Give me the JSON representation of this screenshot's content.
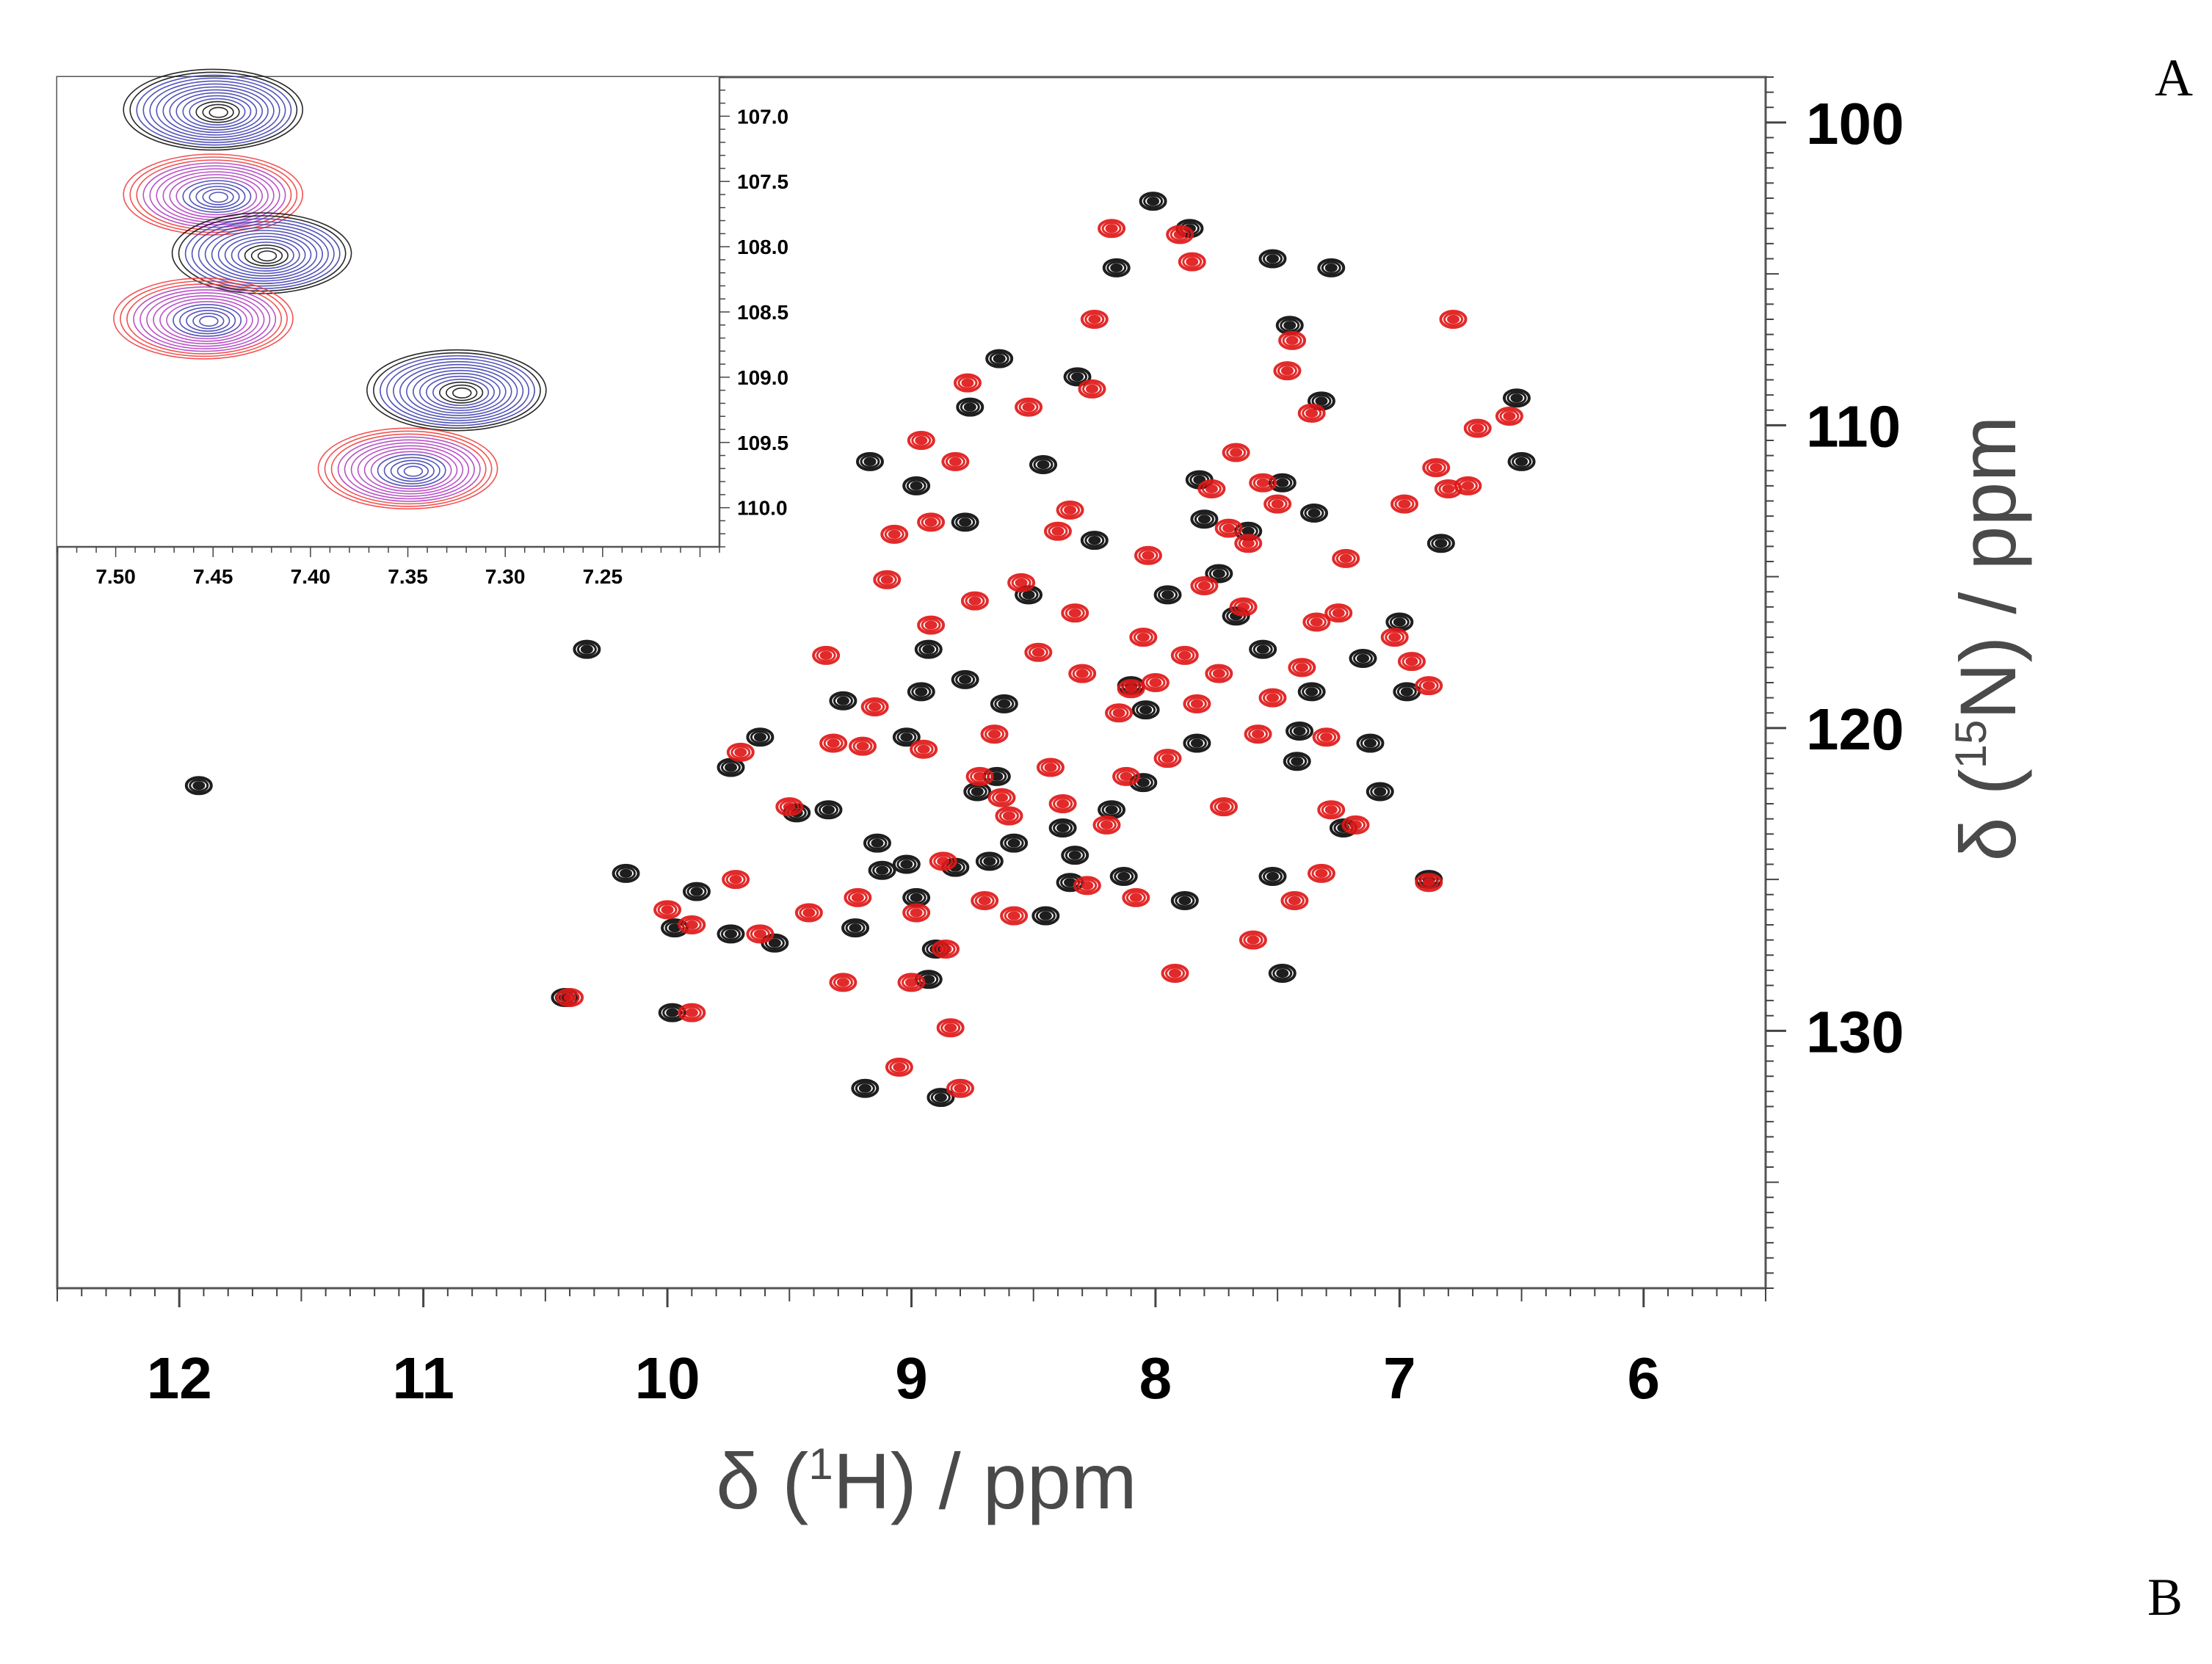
{
  "panel_labels": [
    "A",
    "B"
  ],
  "chart_data": [
    {
      "type": "scatter",
      "subtype": "2D NMR 1H-15N HSQC overlay",
      "title": "",
      "xlabel": {
        "symbol": "δ (",
        "isotope_mass": "1",
        "isotope": "H",
        "suffix": ") / ppm"
      },
      "ylabel": {
        "symbol": "δ (",
        "isotope_mass": "15",
        "isotope": "N",
        "suffix": ") / ppm"
      },
      "x_reversed": true,
      "y_reversed": true,
      "xlim": [
        12.5,
        5.5
      ],
      "ylim": [
        98.5,
        138.5
      ],
      "x_ticks": [
        "12",
        "11",
        "10",
        "9",
        "8",
        "7",
        "6"
      ],
      "x_tick_values": [
        12,
        11,
        10,
        9,
        8,
        7,
        6
      ],
      "y_ticks": [
        "100",
        "110",
        "120",
        "130"
      ],
      "y_tick_values": [
        100,
        110,
        120,
        130
      ],
      "grid": false,
      "colors": {
        "series_a": "#1e1e1e",
        "series_b": "#e01818"
      },
      "series": [
        {
          "color_key": "series_a",
          "points": [
            [
              11.92,
              121.9
            ],
            [
              10.33,
              117.4
            ],
            [
              10.42,
              128.9
            ],
            [
              10.17,
              124.8
            ],
            [
              9.98,
              129.4
            ],
            [
              9.97,
              126.6
            ],
            [
              9.88,
              125.4
            ],
            [
              9.74,
              121.3
            ],
            [
              9.74,
              126.8
            ],
            [
              9.62,
              120.3
            ],
            [
              9.56,
              127.1
            ],
            [
              9.47,
              122.8
            ],
            [
              9.28,
              119.1
            ],
            [
              9.23,
              126.6
            ],
            [
              9.17,
              111.2
            ],
            [
              9.14,
              123.8
            ],
            [
              9.12,
              124.7
            ],
            [
              9.19,
              131.9
            ],
            [
              9.02,
              120.3
            ],
            [
              9.02,
              124.5
            ],
            [
              8.98,
              125.6
            ],
            [
              8.96,
              118.8
            ],
            [
              8.93,
              128.3
            ],
            [
              8.9,
              127.3
            ],
            [
              8.88,
              132.2
            ],
            [
              8.93,
              117.4
            ],
            [
              8.98,
              112.0
            ],
            [
              8.82,
              124.6
            ],
            [
              8.78,
              113.2
            ],
            [
              8.76,
              109.4
            ],
            [
              8.73,
              122.1
            ],
            [
              8.68,
              124.4
            ],
            [
              8.62,
              119.2
            ],
            [
              8.64,
              107.8
            ],
            [
              8.58,
              123.8
            ],
            [
              8.52,
              115.6
            ],
            [
              8.46,
              111.3
            ],
            [
              8.45,
              126.2
            ],
            [
              8.38,
              123.3
            ],
            [
              8.33,
              124.2
            ],
            [
              8.35,
              125.1
            ],
            [
              8.32,
              108.4
            ],
            [
              8.25,
              113.8
            ],
            [
              8.18,
              122.7
            ],
            [
              8.16,
              104.8
            ],
            [
              8.13,
              124.9
            ],
            [
              8.1,
              118.6
            ],
            [
              8.04,
              119.4
            ],
            [
              8.01,
              102.6
            ],
            [
              7.95,
              115.6
            ],
            [
              7.88,
              125.7
            ],
            [
              7.86,
              103.5
            ],
            [
              7.83,
              120.5
            ],
            [
              7.82,
              111.8
            ],
            [
              7.74,
              114.9
            ],
            [
              7.67,
              116.3
            ],
            [
              7.62,
              113.5
            ],
            [
              7.56,
              117.4
            ],
            [
              7.52,
              124.9
            ],
            [
              7.52,
              104.5
            ],
            [
              7.48,
              128.1
            ],
            [
              7.48,
              111.9
            ],
            [
              7.45,
              106.7
            ],
            [
              7.42,
              121.1
            ],
            [
              7.41,
              120.1
            ],
            [
              7.36,
              118.8
            ],
            [
              7.35,
              112.9
            ],
            [
              7.32,
              109.2
            ],
            [
              7.28,
              104.8
            ],
            [
              7.23,
              123.3
            ],
            [
              7.15,
              117.7
            ],
            [
              7.12,
              120.5
            ],
            [
              7.08,
              122.1
            ],
            [
              7.0,
              116.5
            ],
            [
              6.97,
              118.8
            ],
            [
              6.88,
              125.0
            ],
            [
              6.83,
              113.9
            ],
            [
              6.52,
              109.1
            ],
            [
              6.5,
              111.2
            ],
            [
              7.8,
              113.1
            ],
            [
              8.65,
              121.6
            ],
            [
              8.78,
              118.4
            ],
            [
              9.34,
              122.7
            ],
            [
              8.05,
              121.8
            ]
          ]
        },
        {
          "color_key": "series_b",
          "points": [
            [
              10.4,
              128.9
            ],
            [
              10.0,
              126.0
            ],
            [
              9.9,
              126.5
            ],
            [
              9.9,
              129.4
            ],
            [
              9.72,
              125.0
            ],
            [
              9.7,
              120.8
            ],
            [
              9.62,
              126.8
            ],
            [
              9.5,
              122.6
            ],
            [
              9.42,
              126.1
            ],
            [
              9.35,
              117.6
            ],
            [
              9.32,
              120.5
            ],
            [
              9.28,
              128.4
            ],
            [
              9.22,
              125.6
            ],
            [
              9.15,
              119.3
            ],
            [
              9.1,
              115.1
            ],
            [
              9.07,
              113.6
            ],
            [
              9.05,
              131.2
            ],
            [
              9.0,
              128.4
            ],
            [
              8.98,
              126.1
            ],
            [
              8.96,
              110.5
            ],
            [
              8.95,
              120.7
            ],
            [
              8.92,
              113.2
            ],
            [
              8.92,
              116.6
            ],
            [
              8.87,
              124.4
            ],
            [
              8.86,
              127.3
            ],
            [
              8.84,
              129.9
            ],
            [
              8.82,
              111.2
            ],
            [
              8.8,
              131.9
            ],
            [
              8.77,
              108.6
            ],
            [
              8.74,
              115.8
            ],
            [
              8.72,
              121.6
            ],
            [
              8.7,
              125.7
            ],
            [
              8.66,
              120.2
            ],
            [
              8.63,
              122.3
            ],
            [
              8.58,
              126.2
            ],
            [
              8.55,
              115.2
            ],
            [
              8.52,
              109.4
            ],
            [
              8.48,
              117.5
            ],
            [
              8.43,
              121.3
            ],
            [
              8.4,
              113.5
            ],
            [
              8.38,
              122.5
            ],
            [
              8.33,
              116.2
            ],
            [
              8.3,
              118.2
            ],
            [
              8.28,
              125.2
            ],
            [
              8.26,
              108.8
            ],
            [
              8.25,
              106.5
            ],
            [
              8.2,
              123.2
            ],
            [
              8.18,
              103.5
            ],
            [
              8.15,
              119.5
            ],
            [
              8.12,
              121.6
            ],
            [
              8.08,
              125.6
            ],
            [
              8.05,
              117.0
            ],
            [
              8.03,
              114.3
            ],
            [
              8.0,
              118.5
            ],
            [
              7.95,
              121.0
            ],
            [
              7.92,
              128.1
            ],
            [
              7.9,
              103.7
            ],
            [
              7.88,
              117.6
            ],
            [
              7.85,
              104.6
            ],
            [
              7.83,
              119.2
            ],
            [
              7.8,
              115.3
            ],
            [
              7.77,
              112.1
            ],
            [
              7.74,
              118.2
            ],
            [
              7.72,
              122.6
            ],
            [
              7.7,
              113.4
            ],
            [
              7.67,
              110.9
            ],
            [
              7.64,
              116.0
            ],
            [
              7.6,
              127.0
            ],
            [
              7.58,
              120.2
            ],
            [
              7.56,
              111.9
            ],
            [
              7.52,
              119.0
            ],
            [
              7.5,
              112.6
            ],
            [
              7.46,
              108.2
            ],
            [
              7.44,
              107.2
            ],
            [
              7.43,
              125.7
            ],
            [
              7.4,
              118.0
            ],
            [
              7.36,
              109.6
            ],
            [
              7.34,
              116.5
            ],
            [
              7.32,
              124.8
            ],
            [
              7.3,
              120.3
            ],
            [
              7.28,
              122.7
            ],
            [
              7.25,
              116.2
            ],
            [
              7.22,
              114.4
            ],
            [
              7.18,
              123.2
            ],
            [
              7.02,
              117.0
            ],
            [
              6.98,
              112.6
            ],
            [
              6.95,
              117.8
            ],
            [
              6.88,
              118.6
            ],
            [
              6.88,
              125.1
            ],
            [
              6.85,
              111.4
            ],
            [
              6.8,
              112.1
            ],
            [
              6.78,
              106.5
            ],
            [
              6.72,
              112.0
            ],
            [
              6.68,
              110.1
            ],
            [
              6.55,
              109.7
            ],
            [
              8.35,
              112.8
            ],
            [
              8.1,
              118.7
            ],
            [
              7.62,
              113.9
            ],
            [
              8.6,
              122.9
            ],
            [
              9.2,
              120.6
            ]
          ]
        }
      ]
    },
    {
      "type": "scatter",
      "subtype": "inset contour overlay",
      "title": "",
      "x_reversed": true,
      "y_reversed": true,
      "xlim": [
        7.53,
        7.19
      ],
      "ylim": [
        106.7,
        110.3
      ],
      "x_ticks": [
        "7.50",
        "7.45",
        "7.40",
        "7.35",
        "7.30",
        "7.25"
      ],
      "x_tick_values": [
        7.5,
        7.45,
        7.4,
        7.35,
        7.3,
        7.25
      ],
      "y_ticks": [
        "107.0",
        "107.5",
        "108.0",
        "108.5",
        "109.0",
        "109.5",
        "110.0"
      ],
      "y_tick_values": [
        107.0,
        107.5,
        108.0,
        108.5,
        109.0,
        109.5,
        110.0
      ],
      "colors": {
        "outer": "#f04040",
        "mid": "#b040c0",
        "inner": "#4040b0",
        "core": "#111111"
      },
      "peaks": [
        {
          "x": 7.45,
          "y": 106.95,
          "scheme": "blue"
        },
        {
          "x": 7.45,
          "y": 107.6,
          "scheme": "red"
        },
        {
          "x": 7.425,
          "y": 108.05,
          "scheme": "blue"
        },
        {
          "x": 7.455,
          "y": 108.55,
          "scheme": "red"
        },
        {
          "x": 7.325,
          "y": 109.1,
          "scheme": "blue"
        },
        {
          "x": 7.35,
          "y": 109.7,
          "scheme": "red"
        }
      ]
    }
  ]
}
